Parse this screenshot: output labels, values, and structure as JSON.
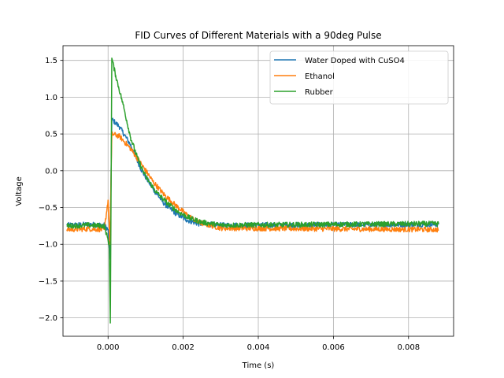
{
  "chart_data": {
    "type": "line",
    "title": "FID Curves of Different Materials with a 90deg Pulse",
    "xlabel": "Time (s)",
    "ylabel": "Voltage",
    "xlim": [
      -0.0012,
      0.0092
    ],
    "ylim": [
      -2.25,
      1.7
    ],
    "grid": true,
    "legend": "top-right",
    "x_ticks": [
      {
        "value": 0.0,
        "label": "0.000"
      },
      {
        "value": 0.002,
        "label": "0.002"
      },
      {
        "value": 0.004,
        "label": "0.004"
      },
      {
        "value": 0.006,
        "label": "0.006"
      },
      {
        "value": 0.008,
        "label": "0.008"
      }
    ],
    "y_ticks": [
      {
        "value": -2.0,
        "label": "−2.0"
      },
      {
        "value": -1.5,
        "label": "−1.5"
      },
      {
        "value": -1.0,
        "label": "−1.0"
      },
      {
        "value": -0.5,
        "label": "−0.5"
      },
      {
        "value": 0.0,
        "label": "0.0"
      },
      {
        "value": 0.5,
        "label": "0.5"
      },
      {
        "value": 1.0,
        "label": "1.0"
      },
      {
        "value": 1.5,
        "label": "1.5"
      }
    ],
    "series": [
      {
        "name": "Water Doped with CuSO4",
        "color": "#1f77b4",
        "baseline": -0.74,
        "noise": 0.035,
        "points": [
          [
            -0.0011,
            -0.74
          ],
          [
            -0.0005,
            -0.73
          ],
          [
            -0.0001,
            -0.74
          ],
          [
            0.0,
            -0.8
          ],
          [
            5e-05,
            -1.2
          ],
          [
            0.0001,
            0.7
          ],
          [
            0.0003,
            0.6
          ],
          [
            0.0006,
            0.35
          ],
          [
            0.0009,
            0.0
          ],
          [
            0.0012,
            -0.25
          ],
          [
            0.0015,
            -0.45
          ],
          [
            0.0018,
            -0.58
          ],
          [
            0.0021,
            -0.67
          ],
          [
            0.0024,
            -0.72
          ],
          [
            0.003,
            -0.74
          ],
          [
            0.0088,
            -0.73
          ]
        ]
      },
      {
        "name": "Ethanol",
        "color": "#ff7f0e",
        "baseline": -0.8,
        "noise": 0.035,
        "points": [
          [
            -0.0011,
            -0.8
          ],
          [
            -0.0005,
            -0.79
          ],
          [
            -0.0001,
            -0.8
          ],
          [
            0.0,
            -0.4
          ],
          [
            5e-05,
            -1.0
          ],
          [
            0.0001,
            0.5
          ],
          [
            0.0003,
            0.47
          ],
          [
            0.0006,
            0.3
          ],
          [
            0.0009,
            0.08
          ],
          [
            0.0012,
            -0.15
          ],
          [
            0.0015,
            -0.33
          ],
          [
            0.0018,
            -0.47
          ],
          [
            0.0021,
            -0.6
          ],
          [
            0.0024,
            -0.7
          ],
          [
            0.003,
            -0.78
          ],
          [
            0.0088,
            -0.8
          ]
        ]
      },
      {
        "name": "Rubber",
        "color": "#2ca02c",
        "baseline": -0.74,
        "noise": 0.035,
        "points": [
          [
            -0.0011,
            -0.75
          ],
          [
            -0.0005,
            -0.74
          ],
          [
            -0.0001,
            -0.75
          ],
          [
            3e-05,
            -1.0
          ],
          [
            6e-05,
            -2.07
          ],
          [
            0.0001,
            1.53
          ],
          [
            0.0002,
            1.3
          ],
          [
            0.0004,
            0.9
          ],
          [
            0.0006,
            0.45
          ],
          [
            0.0008,
            0.15
          ],
          [
            0.001,
            -0.08
          ],
          [
            0.0013,
            -0.3
          ],
          [
            0.0016,
            -0.45
          ],
          [
            0.0019,
            -0.57
          ],
          [
            0.0022,
            -0.65
          ],
          [
            0.0025,
            -0.7
          ],
          [
            0.003,
            -0.74
          ],
          [
            0.0088,
            -0.72
          ]
        ]
      }
    ]
  }
}
